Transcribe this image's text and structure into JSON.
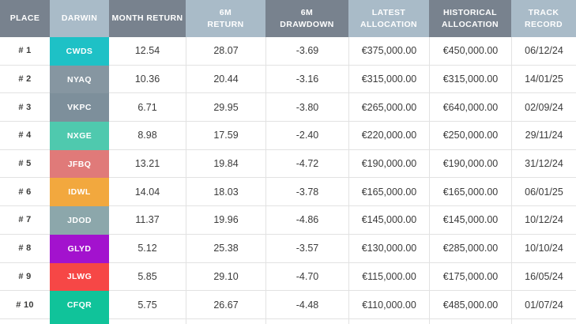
{
  "colors": {
    "header_dark": "#78828E",
    "header_light": "#A9BBC8",
    "header_text": "#FFFFFF",
    "row_border": "#E2E2E2",
    "body_text": "#3B3B3B",
    "background": "#FFFFFF"
  },
  "table": {
    "headers": [
      "PLACE",
      "DARWIN",
      "MONTH RETURN",
      "6M\nRETURN",
      "6M\nDRAWDOWN",
      "LATEST\nALLOCATION",
      "HISTORICAL\nALLOCATION",
      "TRACK\nRECORD"
    ],
    "rows": [
      {
        "place": "# 1",
        "darwin": "CWDS",
        "badge_color": "#1EC1C6",
        "month_return": "12.54",
        "return_6m": "28.07",
        "drawdown_6m": "-3.69",
        "latest_allocation": "€375,000.00",
        "historical_allocation": "€450,000.00",
        "track_record": "06/12/24"
      },
      {
        "place": "# 2",
        "darwin": "NYAQ",
        "badge_color": "#8696A1",
        "month_return": "10.36",
        "return_6m": "20.44",
        "drawdown_6m": "-3.16",
        "latest_allocation": "€315,000.00",
        "historical_allocation": "€315,000.00",
        "track_record": "14/01/25"
      },
      {
        "place": "# 3",
        "darwin": "VKPC",
        "badge_color": "#7D8F9B",
        "month_return": "6.71",
        "return_6m": "29.95",
        "drawdown_6m": "-3.80",
        "latest_allocation": "€265,000.00",
        "historical_allocation": "€640,000.00",
        "track_record": "02/09/24"
      },
      {
        "place": "# 4",
        "darwin": "NXGE",
        "badge_color": "#4FC9AE",
        "month_return": "8.98",
        "return_6m": "17.59",
        "drawdown_6m": "-2.40",
        "latest_allocation": "€220,000.00",
        "historical_allocation": "€250,000.00",
        "track_record": "29/11/24"
      },
      {
        "place": "# 5",
        "darwin": "JFBQ",
        "badge_color": "#E07A79",
        "month_return": "13.21",
        "return_6m": "19.84",
        "drawdown_6m": "-4.72",
        "latest_allocation": "€190,000.00",
        "historical_allocation": "€190,000.00",
        "track_record": "31/12/24"
      },
      {
        "place": "# 6",
        "darwin": "IDWL",
        "badge_color": "#F2A83E",
        "month_return": "14.04",
        "return_6m": "18.03",
        "drawdown_6m": "-3.78",
        "latest_allocation": "€165,000.00",
        "historical_allocation": "€165,000.00",
        "track_record": "06/01/25"
      },
      {
        "place": "# 7",
        "darwin": "JDOD",
        "badge_color": "#8CA7AB",
        "month_return": "11.37",
        "return_6m": "19.96",
        "drawdown_6m": "-4.86",
        "latest_allocation": "€145,000.00",
        "historical_allocation": "€145,000.00",
        "track_record": "10/12/24"
      },
      {
        "place": "# 8",
        "darwin": "GLYD",
        "badge_color": "#A312CE",
        "month_return": "5.12",
        "return_6m": "25.38",
        "drawdown_6m": "-3.57",
        "latest_allocation": "€130,000.00",
        "historical_allocation": "€285,000.00",
        "track_record": "10/10/24"
      },
      {
        "place": "# 9",
        "darwin": "JLWG",
        "badge_color": "#F64746",
        "month_return": "5.85",
        "return_6m": "29.10",
        "drawdown_6m": "-4.70",
        "latest_allocation": "€115,000.00",
        "historical_allocation": "€175,000.00",
        "track_record": "16/05/24"
      },
      {
        "place": "# 10",
        "darwin": "CFQR",
        "badge_color": "#10C39A",
        "month_return": "5.75",
        "return_6m": "26.67",
        "drawdown_6m": "-4.48",
        "latest_allocation": "€110,000.00",
        "historical_allocation": "€485,000.00",
        "track_record": "01/07/24"
      }
    ]
  },
  "chart_data": {
    "type": "table",
    "columns": [
      "PLACE",
      "DARWIN",
      "MONTH RETURN",
      "6M RETURN",
      "6M DRAWDOWN",
      "LATEST ALLOCATION",
      "HISTORICAL ALLOCATION",
      "TRACK RECORD"
    ],
    "rows": [
      [
        "# 1",
        "CWDS",
        12.54,
        28.07,
        -3.69,
        "€375,000.00",
        "€450,000.00",
        "06/12/24"
      ],
      [
        "# 2",
        "NYAQ",
        10.36,
        20.44,
        -3.16,
        "€315,000.00",
        "€315,000.00",
        "14/01/25"
      ],
      [
        "# 3",
        "VKPC",
        6.71,
        29.95,
        -3.8,
        "€265,000.00",
        "€640,000.00",
        "02/09/24"
      ],
      [
        "# 4",
        "NXGE",
        8.98,
        17.59,
        -2.4,
        "€220,000.00",
        "€250,000.00",
        "29/11/24"
      ],
      [
        "# 5",
        "JFBQ",
        13.21,
        19.84,
        -4.72,
        "€190,000.00",
        "€190,000.00",
        "31/12/24"
      ],
      [
        "# 6",
        "IDWL",
        14.04,
        18.03,
        -3.78,
        "€165,000.00",
        "€165,000.00",
        "06/01/25"
      ],
      [
        "# 7",
        "JDOD",
        11.37,
        19.96,
        -4.86,
        "€145,000.00",
        "€145,000.00",
        "10/12/24"
      ],
      [
        "# 8",
        "GLYD",
        5.12,
        25.38,
        -3.57,
        "€130,000.00",
        "€285,000.00",
        "10/10/24"
      ],
      [
        "# 9",
        "JLWG",
        5.85,
        29.1,
        -4.7,
        "€115,000.00",
        "€175,000.00",
        "16/05/24"
      ],
      [
        "# 10",
        "CFQR",
        5.75,
        26.67,
        -4.48,
        "€110,000.00",
        "€485,000.00",
        "01/07/24"
      ]
    ]
  }
}
